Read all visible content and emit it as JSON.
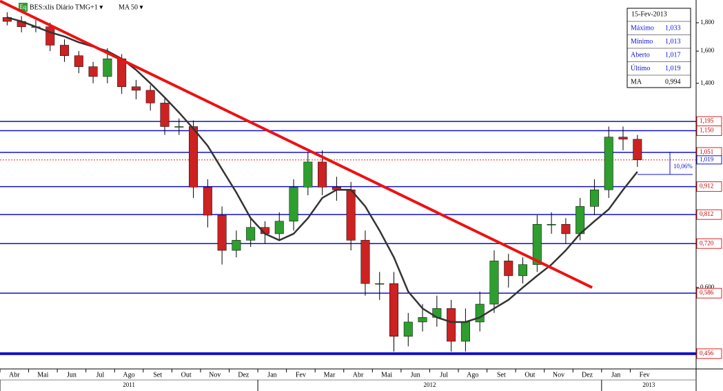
{
  "chart_data": {
    "type": "candlestick",
    "header": "BES:xlis Diário TMG+1 ▾",
    "indicator": "MA 50 ▾",
    "badge": "Eq",
    "log_scale": true,
    "ylim": [
      0.428,
      1.978
    ],
    "yticks": [
      {
        "value": 1.8,
        "label": "1,800"
      },
      {
        "value": 1.6,
        "label": "1,600"
      },
      {
        "value": 1.4,
        "label": "1,400"
      },
      {
        "value": 0.6,
        "label": "0,600"
      }
    ],
    "xlim": [
      0,
      24.3
    ],
    "xticks": [
      {
        "value": 0,
        "label": "Abr"
      },
      {
        "value": 1,
        "label": "Mai"
      },
      {
        "value": 2,
        "label": "Jun"
      },
      {
        "value": 3,
        "label": "Jul"
      },
      {
        "value": 4,
        "label": "Ago"
      },
      {
        "value": 5,
        "label": "Set"
      },
      {
        "value": 6,
        "label": "Out"
      },
      {
        "value": 7,
        "label": "Nov"
      },
      {
        "value": 8,
        "label": "Dez"
      },
      {
        "value": 9,
        "label": "Jan"
      },
      {
        "value": 10,
        "label": "Fev"
      },
      {
        "value": 11,
        "label": "Mar"
      },
      {
        "value": 12,
        "label": "Abr"
      },
      {
        "value": 13,
        "label": "Mai"
      },
      {
        "value": 14,
        "label": "Jun"
      },
      {
        "value": 15,
        "label": "Jul"
      },
      {
        "value": 16,
        "label": "Ago"
      },
      {
        "value": 17,
        "label": "Set"
      },
      {
        "value": 18,
        "label": "Out"
      },
      {
        "value": 19,
        "label": "Nov"
      },
      {
        "value": 20,
        "label": "Dez"
      },
      {
        "value": 21,
        "label": "Jan"
      },
      {
        "value": 22,
        "label": "Fev"
      }
    ],
    "years": [
      {
        "label": "2011",
        "start": 0,
        "end": 9
      },
      {
        "label": "2012",
        "start": 9,
        "end": 21
      },
      {
        "label": "2013",
        "start": 21,
        "end": 24.3
      }
    ],
    "x": [
      0.25,
      0.75,
      1.25,
      1.75,
      2.25,
      2.75,
      3.25,
      3.75,
      4.25,
      4.75,
      5.25,
      5.75,
      6.25,
      6.75,
      7.25,
      7.75,
      8.25,
      8.75,
      9.25,
      9.75,
      10.25,
      10.75,
      11.25,
      11.75,
      12.25,
      12.75,
      13.25,
      13.75,
      14.25,
      14.75,
      15.25,
      15.75,
      16.25,
      16.75,
      17.25,
      17.75,
      18.25,
      18.75,
      19.25,
      19.75,
      20.25,
      20.75,
      21.25,
      21.75,
      22.25
    ],
    "open": [
      1.84,
      1.81,
      1.77,
      1.77,
      1.64,
      1.57,
      1.5,
      1.44,
      1.55,
      1.38,
      1.36,
      1.29,
      1.17,
      1.17,
      0.91,
      0.81,
      0.7,
      0.73,
      0.77,
      0.75,
      0.79,
      0.91,
      1.01,
      0.91,
      0.9,
      0.73,
      0.61,
      0.61,
      0.49,
      0.52,
      0.53,
      0.55,
      0.48,
      0.52,
      0.56,
      0.67,
      0.63,
      0.66,
      0.78,
      0.78,
      0.75,
      0.84,
      0.9,
      1.12,
      1.11
    ],
    "high": [
      1.88,
      1.85,
      1.82,
      1.8,
      1.68,
      1.6,
      1.53,
      1.62,
      1.58,
      1.42,
      1.39,
      1.32,
      1.21,
      1.2,
      0.94,
      0.84,
      0.76,
      0.8,
      0.79,
      0.82,
      0.94,
      1.05,
      1.06,
      0.95,
      0.93,
      0.76,
      0.64,
      0.64,
      0.54,
      0.56,
      0.58,
      0.57,
      0.55,
      0.59,
      0.7,
      0.69,
      0.68,
      0.81,
      0.82,
      0.8,
      0.87,
      0.94,
      1.17,
      1.17,
      1.13
    ],
    "low": [
      1.78,
      1.73,
      1.73,
      1.6,
      1.53,
      1.46,
      1.4,
      1.4,
      1.34,
      1.31,
      1.25,
      1.13,
      1.13,
      0.87,
      0.77,
      0.66,
      0.68,
      0.71,
      0.72,
      0.73,
      0.76,
      0.88,
      0.88,
      0.86,
      0.7,
      0.58,
      0.57,
      0.46,
      0.47,
      0.5,
      0.51,
      0.46,
      0.46,
      0.5,
      0.54,
      0.6,
      0.61,
      0.64,
      0.75,
      0.72,
      0.73,
      0.81,
      0.87,
      1.06,
      0.99
    ],
    "close": [
      1.81,
      1.77,
      1.77,
      1.64,
      1.57,
      1.5,
      1.44,
      1.55,
      1.38,
      1.36,
      1.29,
      1.17,
      1.17,
      0.91,
      0.81,
      0.7,
      0.73,
      0.77,
      0.75,
      0.79,
      0.91,
      1.01,
      0.91,
      0.9,
      0.73,
      0.61,
      0.61,
      0.49,
      0.52,
      0.53,
      0.55,
      0.48,
      0.52,
      0.56,
      0.67,
      0.63,
      0.66,
      0.78,
      0.78,
      0.75,
      0.84,
      0.9,
      1.12,
      1.11,
      1.019
    ],
    "up_color": "#2e9e2e",
    "down_color": "#cc2222",
    "ma": {
      "color": "#333333",
      "values": [
        1.84,
        1.81,
        1.77,
        1.73,
        1.7,
        1.66,
        1.63,
        1.6,
        1.55,
        1.48,
        1.4,
        1.32,
        1.24,
        1.16,
        1.08,
        0.98,
        0.89,
        0.8,
        0.75,
        0.73,
        0.75,
        0.8,
        0.87,
        0.9,
        0.9,
        0.84,
        0.76,
        0.68,
        0.59,
        0.55,
        0.53,
        0.52,
        0.52,
        0.53,
        0.55,
        0.57,
        0.6,
        0.63,
        0.66,
        0.7,
        0.75,
        0.79,
        0.83,
        0.9,
        0.97
      ]
    },
    "trendline": {
      "color": "#ee1111",
      "x": [
        0,
        20.67
      ],
      "values": [
        1.97,
        0.6
      ]
    },
    "levels": [
      {
        "value": 1.195,
        "label": "1,195"
      },
      {
        "value": 1.15,
        "label": "1,150"
      },
      {
        "value": 1.051,
        "label": "1,051"
      },
      {
        "value": 0.912,
        "label": "0,912"
      },
      {
        "value": 0.812,
        "label": "0,812"
      },
      {
        "value": 0.72,
        "label": "0,720"
      },
      {
        "value": 0.586,
        "label": "0,586"
      },
      {
        "value": 0.456,
        "label": "0,456"
      }
    ],
    "level_color": "#1010cc",
    "current_price": {
      "value": 1.019,
      "label": "1,019"
    },
    "change_annotation": "10,06%",
    "info": {
      "date": "15-Fev-2013",
      "rows": [
        [
          "Máximo",
          "1,033"
        ],
        [
          "Mínimo",
          "1,013"
        ],
        [
          "Aberto",
          "1,017"
        ],
        [
          "Último",
          "1,019"
        ],
        [
          "MA",
          "0,994"
        ]
      ]
    }
  }
}
